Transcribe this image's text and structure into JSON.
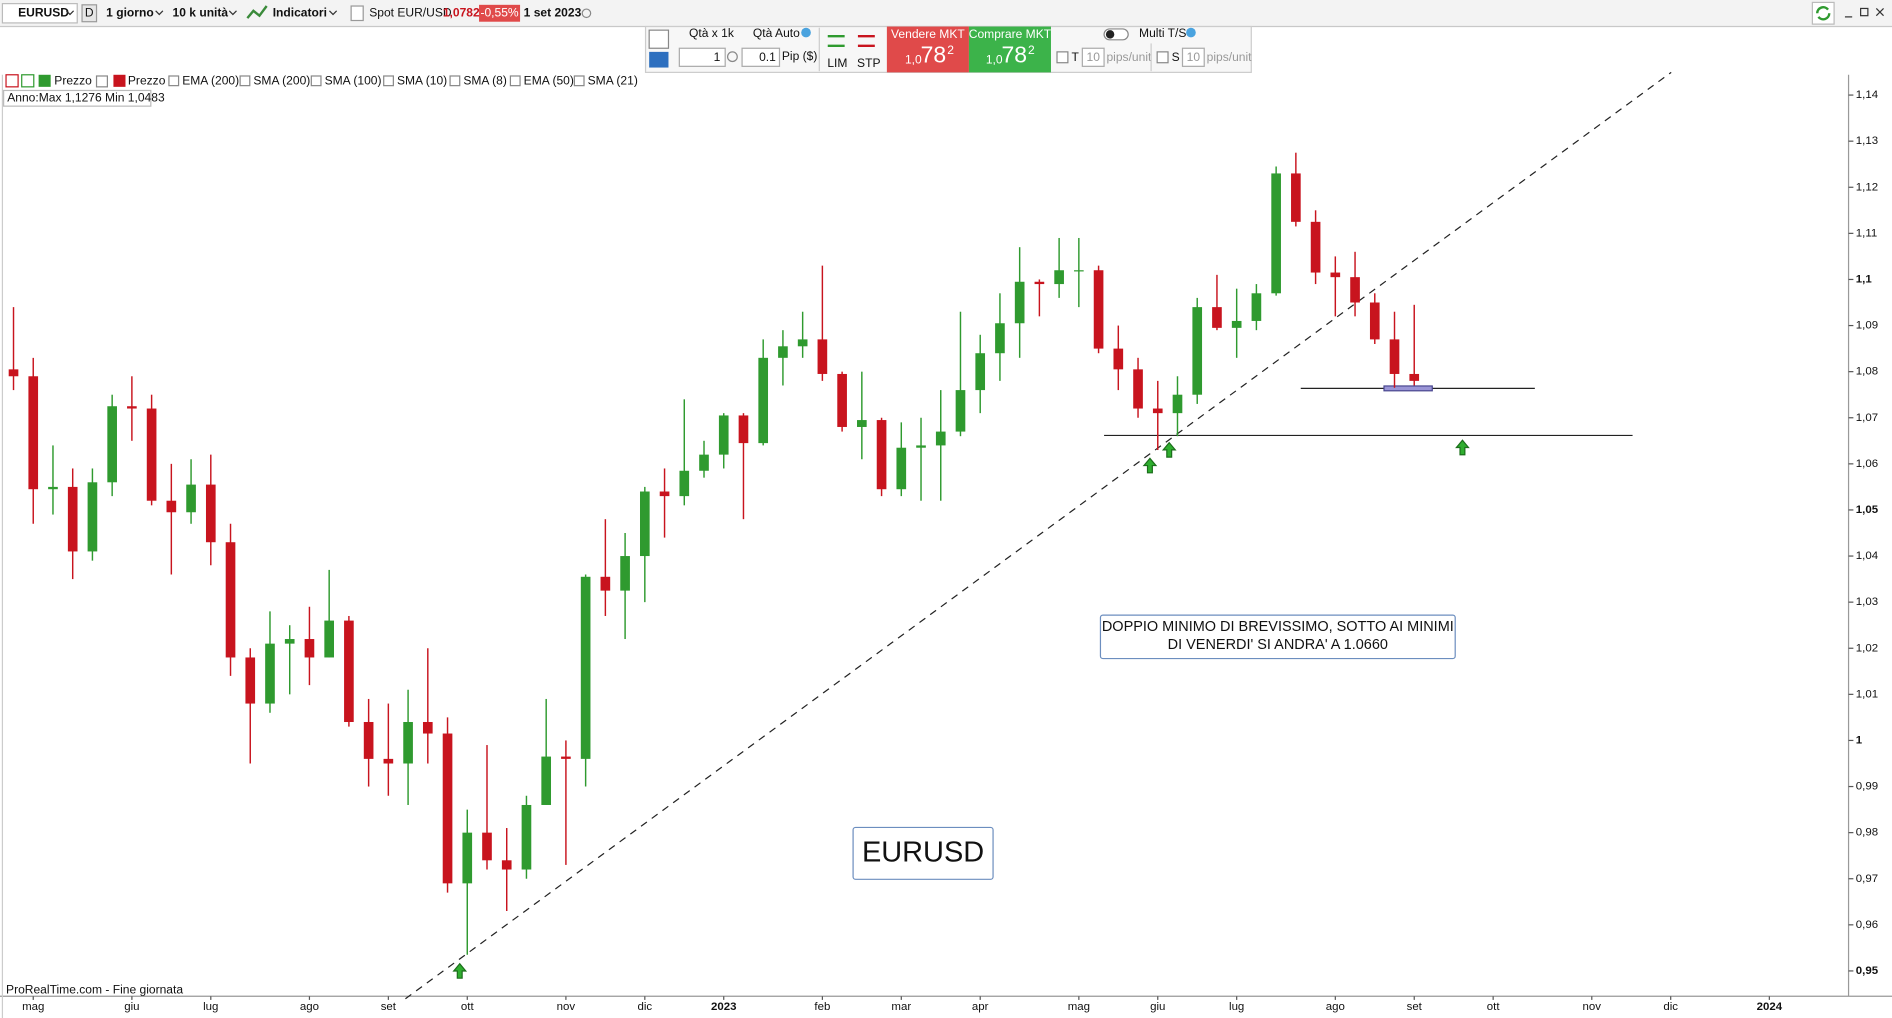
{
  "toolbar": {
    "symbol": "EURUSD",
    "period_code": "D",
    "period": "1 giorno",
    "units": "10 k unità",
    "indicators": "Indicatori",
    "instrument": "Spot EUR/USD",
    "price": "1,0782",
    "change": "-0,55%",
    "date": "1 set 2023"
  },
  "order_panel": {
    "qty_label": "Qtà  x 1k",
    "qty_auto": "Qtà Auto",
    "qty": "1",
    "pip": "0.1",
    "pip_label": "Pip ($)",
    "lim": "LIM",
    "stp": "STP",
    "sell": {
      "label": "Vendere MKT",
      "price_prefix": "1,0",
      "price_main": "78",
      "price_sup": "2"
    },
    "buy": {
      "label": "Comprare MKT",
      "price_prefix": "1,0",
      "price_main": "78",
      "price_sup": "2"
    },
    "multi": "Multi T/S",
    "t_label": "T",
    "t_value": "10",
    "t_unit": "pips/unit",
    "s_label": "S",
    "s_value": "10",
    "s_unit": "pips/unit"
  },
  "indicators": [
    "Prezzo",
    "Prezzo",
    "EMA (200)",
    "SMA (200)",
    "SMA (100)",
    "SMA (10)",
    "SMA (8)",
    "EMA (50)",
    "SMA (21)"
  ],
  "chart_data": {
    "type": "candlestick",
    "up_color": "#2f9a2f",
    "down_color": "#c8141e",
    "categories": [
      null,
      "mag",
      null,
      null,
      null,
      null,
      "giu",
      null,
      null,
      null,
      "lug",
      null,
      null,
      null,
      null,
      "ago",
      null,
      null,
      null,
      "set",
      null,
      null,
      null,
      "ott",
      null,
      null,
      null,
      null,
      "nov",
      null,
      null,
      null,
      "dic",
      null,
      null,
      null,
      "2023",
      null,
      null,
      null,
      null,
      "feb",
      null,
      null,
      null,
      "mar",
      null,
      null,
      null,
      "apr",
      null,
      null,
      null,
      null,
      "mag",
      null,
      null,
      null,
      "giu",
      null,
      null,
      null,
      "lug",
      null,
      null,
      null,
      null,
      "ago",
      null,
      null,
      null,
      "set",
      null,
      null,
      null,
      "ott",
      null,
      null,
      null,
      null,
      "nov",
      null,
      null,
      null,
      "dic",
      null,
      null,
      null,
      null,
      "2024",
      null,
      null,
      null,
      null
    ],
    "open": [
      1.0805,
      1.079,
      1.0545,
      1.055,
      1.041,
      1.056,
      1.0725,
      1.072,
      1.052,
      1.0495,
      1.0555,
      1.043,
      1.018,
      1.008,
      1.021,
      1.022,
      1.018,
      1.026,
      1.004,
      0.996,
      0.995,
      1.004,
      1.0015,
      0.969,
      0.98,
      0.974,
      0.972,
      0.986,
      0.9965,
      0.996,
      1.0355,
      1.0325,
      1.04,
      1.054,
      1.053,
      1.0585,
      1.062,
      1.0705,
      1.0645,
      1.083,
      1.0855,
      1.087,
      1.0795,
      1.068,
      1.0695,
      1.0545,
      1.0635,
      1.064,
      1.067,
      1.076,
      1.084,
      1.0905,
      1.0995,
      1.099,
      1.102,
      1.102,
      1.085,
      1.0805,
      1.072,
      1.071,
      1.075,
      1.094,
      1.0895,
      1.091,
      1.097,
      1.123,
      1.1125,
      1.1015,
      1.1005,
      1.095,
      1.087,
      1.0795,
      null,
      null,
      null,
      null,
      null,
      null,
      null,
      null,
      null,
      null,
      null,
      null,
      null,
      null,
      null,
      null,
      null,
      null,
      null,
      null,
      null,
      null
    ],
    "high": [
      1.094,
      1.083,
      1.064,
      1.059,
      1.059,
      1.075,
      1.079,
      1.075,
      1.06,
      1.061,
      1.062,
      1.047,
      1.02,
      1.028,
      1.025,
      1.029,
      1.037,
      1.027,
      1.009,
      1.008,
      1.011,
      1.02,
      1.005,
      0.985,
      0.999,
      0.981,
      0.988,
      1.009,
      1.0,
      1.036,
      1.048,
      1.045,
      1.055,
      1.059,
      1.074,
      1.065,
      1.071,
      1.071,
      1.087,
      1.089,
      1.093,
      1.103,
      1.08,
      1.08,
      1.07,
      1.069,
      1.07,
      1.076,
      1.093,
      1.088,
      1.097,
      1.107,
      1.1,
      1.109,
      1.109,
      1.103,
      1.09,
      1.083,
      1.078,
      1.079,
      1.096,
      1.101,
      1.098,
      1.099,
      1.1245,
      1.1275,
      1.115,
      1.105,
      1.106,
      1.097,
      1.093,
      1.0945,
      null,
      null,
      null,
      null,
      null,
      null,
      null,
      null,
      null,
      null,
      null,
      null,
      null,
      null,
      null,
      null,
      null,
      null,
      null,
      null,
      null,
      null
    ],
    "low": [
      1.076,
      1.047,
      1.049,
      1.035,
      1.039,
      1.053,
      1.065,
      1.051,
      1.036,
      1.047,
      1.038,
      1.014,
      0.995,
      1.006,
      1.01,
      1.012,
      1.018,
      1.003,
      0.99,
      0.988,
      0.986,
      0.995,
      0.967,
      0.9535,
      0.972,
      0.963,
      0.97,
      0.986,
      0.973,
      0.99,
      1.027,
      1.022,
      1.03,
      1.044,
      1.051,
      1.057,
      1.059,
      1.048,
      1.064,
      1.077,
      1.083,
      1.078,
      1.067,
      1.061,
      1.053,
      1.053,
      1.052,
      1.052,
      1.066,
      1.071,
      1.078,
      1.083,
      1.092,
      1.096,
      1.094,
      1.084,
      1.076,
      1.07,
      1.063,
      1.066,
      1.073,
      1.089,
      1.083,
      1.089,
      1.0965,
      1.1115,
      1.099,
      1.092,
      1.092,
      1.086,
      1.0765,
      1.077,
      null,
      null,
      null,
      null,
      null,
      null,
      null,
      null,
      null,
      null,
      null,
      null,
      null,
      null,
      null,
      null,
      null,
      null,
      null,
      null,
      null,
      null
    ],
    "close": [
      1.079,
      1.0545,
      1.055,
      1.041,
      1.056,
      1.0725,
      1.072,
      1.052,
      1.0495,
      1.0555,
      1.043,
      1.018,
      1.008,
      1.021,
      1.022,
      1.018,
      1.026,
      1.004,
      0.996,
      0.995,
      1.004,
      1.0015,
      0.969,
      0.98,
      0.974,
      0.972,
      0.986,
      0.9965,
      0.996,
      1.0355,
      1.0325,
      1.04,
      1.054,
      1.053,
      1.0585,
      1.062,
      1.0705,
      1.0645,
      1.083,
      1.0855,
      1.087,
      1.0795,
      1.068,
      1.0695,
      1.0545,
      1.0635,
      1.064,
      1.067,
      1.076,
      1.084,
      1.0905,
      1.0995,
      1.099,
      1.102,
      1.102,
      1.085,
      1.0805,
      1.072,
      1.071,
      1.075,
      1.094,
      1.0895,
      1.091,
      1.097,
      1.123,
      1.1125,
      1.1015,
      1.1005,
      1.095,
      1.087,
      1.0795,
      1.078,
      null,
      null,
      null,
      null,
      null,
      null,
      null,
      null,
      null,
      null,
      null,
      null,
      null,
      null,
      null,
      null,
      null,
      null,
      null,
      null,
      null,
      null
    ],
    "ylim": [
      0.9445,
      1.1444
    ],
    "yticks": [
      {
        "value": 1.14,
        "label": "1,14"
      },
      {
        "value": 1.13,
        "label": "1,13"
      },
      {
        "value": 1.12,
        "label": "1,12"
      },
      {
        "value": 1.11,
        "label": "1,11"
      },
      {
        "value": 1.1,
        "label": "1,1"
      },
      {
        "value": 1.09,
        "label": "1,09"
      },
      {
        "value": 1.08,
        "label": "1,08"
      },
      {
        "value": 1.07,
        "label": "1,07"
      },
      {
        "value": 1.06,
        "label": "1,06"
      },
      {
        "value": 1.05,
        "label": "1,05"
      },
      {
        "value": 1.04,
        "label": "1,04"
      },
      {
        "value": 1.03,
        "label": "1,03"
      },
      {
        "value": 1.02,
        "label": "1,02"
      },
      {
        "value": 1.01,
        "label": "1,01"
      },
      1,
      {
        "value": 0.99,
        "label": "0,99"
      },
      {
        "value": 0.98,
        "label": "0,98"
      },
      {
        "value": 0.97,
        "label": "0,97"
      },
      {
        "value": 0.96,
        "label": "0,96"
      },
      {
        "value": 0.95,
        "label": "0,95"
      }
    ],
    "range_info": "Anno:Max 1,1276 Min 1,0483",
    "note_lines": [
      "DOPPIO MINIMO DI BREVISSIMO, SOTTO AI MINIMI",
      "DI VENERDI' SI ANDRA' A 1.0660"
    ],
    "symbol_label": "EURUSD",
    "source": "ProRealTime.com - Fine giornata"
  }
}
